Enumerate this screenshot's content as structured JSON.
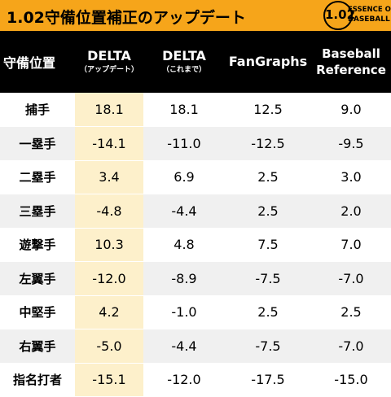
{
  "banner": {
    "title": "1.02守備位置補正のアップデート",
    "logo_number": "1.02",
    "logo_line1": "ESSENCE OF",
    "logo_line2": "BASEBALL"
  },
  "table": {
    "headers": [
      {
        "main": "守備位置"
      },
      {
        "main": "DELTA",
        "sub": "（アップデート）"
      },
      {
        "main": "DELTA",
        "sub": "（これまで）"
      },
      {
        "main": "FanGraphs"
      },
      {
        "line1": "Baseball",
        "line2": "Reference"
      }
    ],
    "rows": [
      {
        "position": "捕手",
        "values": [
          "18.1",
          "18.1",
          "12.5",
          "9.0"
        ]
      },
      {
        "position": "一塁手",
        "values": [
          "-14.1",
          "-11.0",
          "-12.5",
          "-9.5"
        ]
      },
      {
        "position": "二塁手",
        "values": [
          "3.4",
          "6.9",
          "2.5",
          "3.0"
        ]
      },
      {
        "position": "三塁手",
        "values": [
          "-4.8",
          "-4.4",
          "2.5",
          "2.0"
        ]
      },
      {
        "position": "遊撃手",
        "values": [
          "10.3",
          "4.8",
          "7.5",
          "7.0"
        ]
      },
      {
        "position": "左翼手",
        "values": [
          "-12.0",
          "-8.9",
          "-7.5",
          "-7.0"
        ]
      },
      {
        "position": "中堅手",
        "values": [
          "4.2",
          "-1.0",
          "2.5",
          "2.5"
        ]
      },
      {
        "position": "右翼手",
        "values": [
          "-5.0",
          "-4.4",
          "-7.5",
          "-7.0"
        ]
      },
      {
        "position": "指名打者",
        "values": [
          "-15.1",
          "-12.0",
          "-17.5",
          "-15.0"
        ]
      }
    ]
  },
  "colors": {
    "banner": "#f6a51a",
    "header_bg": "#000000",
    "highlight_column": "#fdf0cb",
    "stripe": "#f0f0f0"
  }
}
